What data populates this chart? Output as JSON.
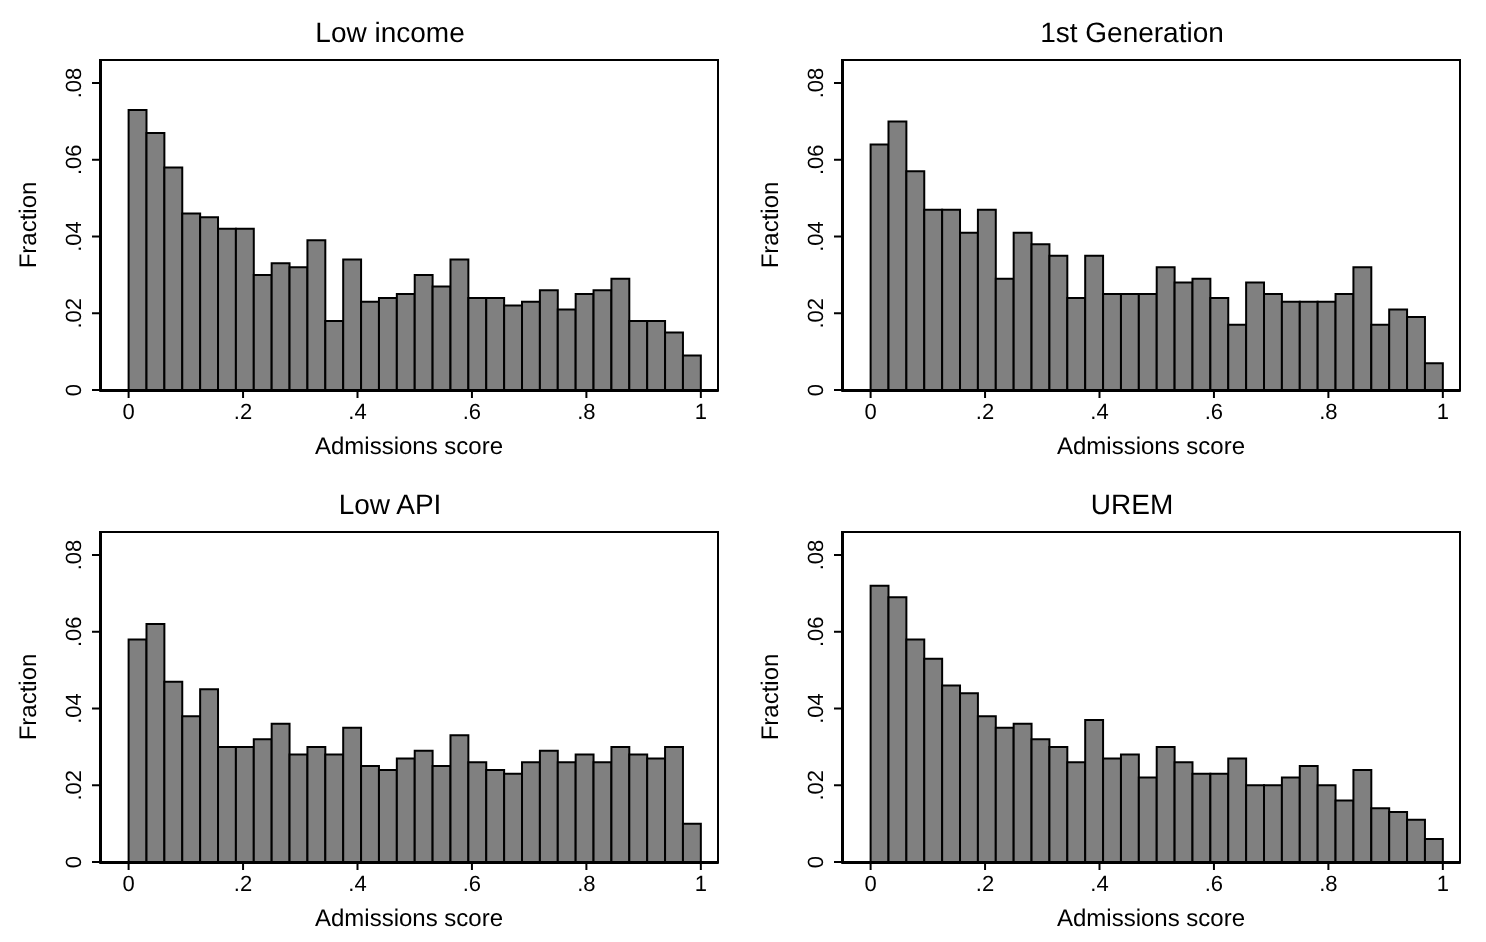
{
  "chart_data": [
    {
      "type": "histogram",
      "title": "Low income",
      "xlabel": "Admissions score",
      "ylabel": "Fraction",
      "color": "#808080",
      "bins": [
        0,
        0.03125,
        0.0625,
        0.09375,
        0.125,
        0.15625,
        0.1875,
        0.21875,
        0.25,
        0.28125,
        0.3125,
        0.34375,
        0.375,
        0.40625,
        0.4375,
        0.46875,
        0.5,
        0.53125,
        0.5625,
        0.59375,
        0.625,
        0.65625,
        0.6875,
        0.71875,
        0.75,
        0.78125,
        0.8125,
        0.84375,
        0.875,
        0.90625,
        0.9375,
        0.96875,
        1
      ],
      "values": [
        0.073,
        0.067,
        0.058,
        0.046,
        0.045,
        0.042,
        0.042,
        0.03,
        0.033,
        0.032,
        0.039,
        0.018,
        0.034,
        0.023,
        0.024,
        0.025,
        0.03,
        0.027,
        0.034,
        0.024,
        0.024,
        0.022,
        0.023,
        0.026,
        0.021,
        0.025,
        0.026,
        0.029,
        0.018,
        0.018,
        0.015,
        0.009
      ],
      "xlim": [
        -0.05,
        1.03
      ],
      "ylim": [
        0,
        0.086
      ],
      "xticks": [
        {
          "value": 0,
          "label": "0"
        },
        {
          "value": 0.2,
          "label": ".2"
        },
        {
          "value": 0.4,
          "label": ".4"
        },
        {
          "value": 0.6,
          "label": ".6"
        },
        {
          "value": 0.8,
          "label": ".8"
        },
        {
          "value": 1,
          "label": "1"
        }
      ],
      "yticks": [
        {
          "value": 0,
          "label": "0"
        },
        {
          "value": 0.02,
          "label": ".02"
        },
        {
          "value": 0.04,
          "label": ".04"
        },
        {
          "value": 0.06,
          "label": ".06"
        },
        {
          "value": 0.08,
          "label": ".08"
        }
      ]
    },
    {
      "type": "histogram",
      "title": "1st Generation",
      "xlabel": "Admissions score",
      "ylabel": "Fraction",
      "color": "#808080",
      "bins": [
        0,
        0.03125,
        0.0625,
        0.09375,
        0.125,
        0.15625,
        0.1875,
        0.21875,
        0.25,
        0.28125,
        0.3125,
        0.34375,
        0.375,
        0.40625,
        0.4375,
        0.46875,
        0.5,
        0.53125,
        0.5625,
        0.59375,
        0.625,
        0.65625,
        0.6875,
        0.71875,
        0.75,
        0.78125,
        0.8125,
        0.84375,
        0.875,
        0.90625,
        0.9375,
        0.96875,
        1
      ],
      "values": [
        0.064,
        0.07,
        0.057,
        0.047,
        0.047,
        0.041,
        0.047,
        0.029,
        0.041,
        0.038,
        0.035,
        0.024,
        0.035,
        0.025,
        0.025,
        0.025,
        0.032,
        0.028,
        0.029,
        0.024,
        0.017,
        0.028,
        0.025,
        0.023,
        0.023,
        0.023,
        0.025,
        0.032,
        0.017,
        0.021,
        0.019,
        0.007
      ],
      "xlim": [
        -0.05,
        1.03
      ],
      "ylim": [
        0,
        0.086
      ],
      "xticks": [
        {
          "value": 0,
          "label": "0"
        },
        {
          "value": 0.2,
          "label": ".2"
        },
        {
          "value": 0.4,
          "label": ".4"
        },
        {
          "value": 0.6,
          "label": ".6"
        },
        {
          "value": 0.8,
          "label": ".8"
        },
        {
          "value": 1,
          "label": "1"
        }
      ],
      "yticks": [
        {
          "value": 0,
          "label": "0"
        },
        {
          "value": 0.02,
          "label": ".02"
        },
        {
          "value": 0.04,
          "label": ".04"
        },
        {
          "value": 0.06,
          "label": ".06"
        },
        {
          "value": 0.08,
          "label": ".08"
        }
      ]
    },
    {
      "type": "histogram",
      "title": "Low API",
      "xlabel": "Admissions score",
      "ylabel": "Fraction",
      "color": "#808080",
      "bins": [
        0,
        0.03125,
        0.0625,
        0.09375,
        0.125,
        0.15625,
        0.1875,
        0.21875,
        0.25,
        0.28125,
        0.3125,
        0.34375,
        0.375,
        0.40625,
        0.4375,
        0.46875,
        0.5,
        0.53125,
        0.5625,
        0.59375,
        0.625,
        0.65625,
        0.6875,
        0.71875,
        0.75,
        0.78125,
        0.8125,
        0.84375,
        0.875,
        0.90625,
        0.9375,
        0.96875,
        1
      ],
      "values": [
        0.058,
        0.062,
        0.047,
        0.038,
        0.045,
        0.03,
        0.03,
        0.032,
        0.036,
        0.028,
        0.03,
        0.028,
        0.035,
        0.025,
        0.024,
        0.027,
        0.029,
        0.025,
        0.033,
        0.026,
        0.024,
        0.023,
        0.026,
        0.029,
        0.026,
        0.028,
        0.026,
        0.03,
        0.028,
        0.027,
        0.03,
        0.01
      ],
      "xlim": [
        -0.05,
        1.03
      ],
      "ylim": [
        0,
        0.086
      ],
      "xticks": [
        {
          "value": 0,
          "label": "0"
        },
        {
          "value": 0.2,
          "label": ".2"
        },
        {
          "value": 0.4,
          "label": ".4"
        },
        {
          "value": 0.6,
          "label": ".6"
        },
        {
          "value": 0.8,
          "label": ".8"
        },
        {
          "value": 1,
          "label": "1"
        }
      ],
      "yticks": [
        {
          "value": 0,
          "label": "0"
        },
        {
          "value": 0.02,
          "label": ".02"
        },
        {
          "value": 0.04,
          "label": ".04"
        },
        {
          "value": 0.06,
          "label": ".06"
        },
        {
          "value": 0.08,
          "label": ".08"
        }
      ]
    },
    {
      "type": "histogram",
      "title": "UREM",
      "xlabel": "Admissions score",
      "ylabel": "Fraction",
      "color": "#808080",
      "bins": [
        0,
        0.03125,
        0.0625,
        0.09375,
        0.125,
        0.15625,
        0.1875,
        0.21875,
        0.25,
        0.28125,
        0.3125,
        0.34375,
        0.375,
        0.40625,
        0.4375,
        0.46875,
        0.5,
        0.53125,
        0.5625,
        0.59375,
        0.625,
        0.65625,
        0.6875,
        0.71875,
        0.75,
        0.78125,
        0.8125,
        0.84375,
        0.875,
        0.90625,
        0.9375,
        0.96875,
        1
      ],
      "values": [
        0.072,
        0.069,
        0.058,
        0.053,
        0.046,
        0.044,
        0.038,
        0.035,
        0.036,
        0.032,
        0.03,
        0.026,
        0.037,
        0.027,
        0.028,
        0.022,
        0.03,
        0.026,
        0.023,
        0.023,
        0.027,
        0.02,
        0.02,
        0.022,
        0.025,
        0.02,
        0.016,
        0.024,
        0.014,
        0.013,
        0.011,
        0.006
      ],
      "xlim": [
        -0.05,
        1.03
      ],
      "ylim": [
        0,
        0.086
      ],
      "xticks": [
        {
          "value": 0,
          "label": "0"
        },
        {
          "value": 0.2,
          "label": ".2"
        },
        {
          "value": 0.4,
          "label": ".4"
        },
        {
          "value": 0.6,
          "label": ".6"
        },
        {
          "value": 0.8,
          "label": ".8"
        },
        {
          "value": 1,
          "label": "1"
        }
      ],
      "yticks": [
        {
          "value": 0,
          "label": "0"
        },
        {
          "value": 0.02,
          "label": ".02"
        },
        {
          "value": 0.04,
          "label": ".04"
        },
        {
          "value": 0.06,
          "label": ".06"
        },
        {
          "value": 0.08,
          "label": ".08"
        }
      ]
    }
  ]
}
